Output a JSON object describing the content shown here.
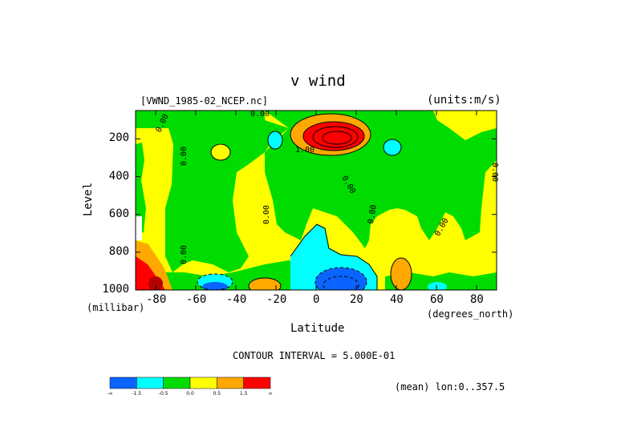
{
  "figure": {
    "title": "v wind",
    "file_label": "[VWND_1985-02_NCEP.nc]",
    "units_label": "(units:m/s)",
    "unit_note": "(millibar)",
    "x_unit_note": "(degrees_north)",
    "contour_interval": "CONTOUR INTERVAL = 5.000E-01",
    "mean_note": "(mean) lon:0..357.5"
  },
  "colors": {
    "blue": "#0a64ff",
    "cyan": "#00ffff",
    "green": "#00dc00",
    "yellow": "#ffff00",
    "orange": "#ffa800",
    "red": "#ff0000",
    "darkred": "#b30000"
  },
  "chart_data": {
    "type": "heatmap",
    "title": "v wind",
    "xlabel": "Latitude",
    "ylabel": "Level",
    "x_unit": "degrees_north",
    "y_unit": "millibar",
    "xlim": [
      -90,
      90
    ],
    "ylim": [
      1000,
      50
    ],
    "y_inverted": true,
    "x_ticks": [
      -80,
      -60,
      -40,
      -20,
      0,
      20,
      40,
      60,
      80
    ],
    "y_ticks": [
      200,
      400,
      600,
      800,
      1000
    ],
    "contour_interval": 0.5,
    "contour_labels": [
      "0.00",
      "0.00",
      "0.00",
      "0.00",
      "0.00",
      "0.00",
      "0.00",
      "0.00",
      "0.00",
      "1.00"
    ],
    "legend": {
      "labels": [
        "-∞",
        "-1.5",
        "-0.5",
        "0.0",
        "0.5",
        "1.5",
        "∞"
      ],
      "colors": [
        "#0a64ff",
        "#00ffff",
        "#00dc00",
        "#ffff00",
        "#ffa800",
        "#ff0000"
      ]
    }
  }
}
